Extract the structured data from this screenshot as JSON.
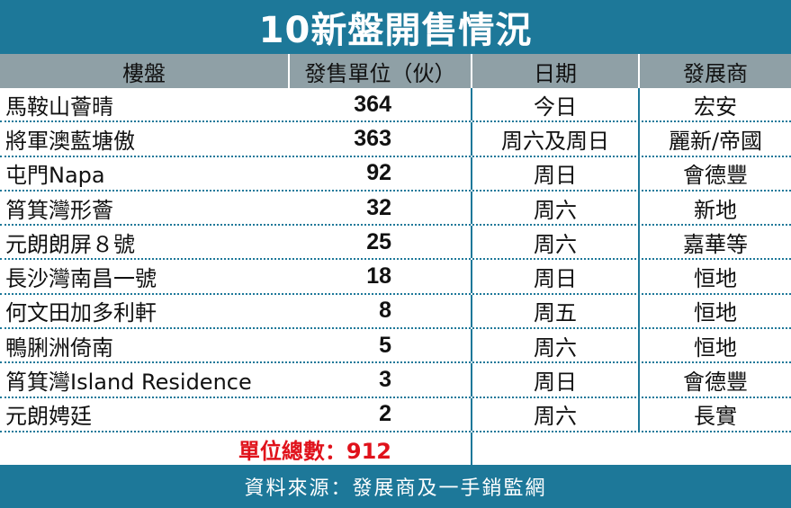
{
  "title": "10新盤開售情況",
  "headers": [
    "樓盤",
    "發售單位（伙）",
    "日期",
    "發展商"
  ],
  "rows": [
    {
      "name": "馬鞍山薈晴",
      "units": "364",
      "date": "今日",
      "developer": "宏安"
    },
    {
      "name": "將軍澳藍塘傲",
      "units": "363",
      "date": "周六及周日",
      "developer": "麗新/帝國"
    },
    {
      "name": "屯門Napa",
      "units": "92",
      "date": "周日",
      "developer": "會德豐"
    },
    {
      "name": "筲箕灣形薈",
      "units": "32",
      "date": "周六",
      "developer": "新地"
    },
    {
      "name": "元朗朗屏８號",
      "units": "25",
      "date": "周六",
      "developer": "嘉華等"
    },
    {
      "name": "長沙灣南昌一號",
      "units": "18",
      "date": "周日",
      "developer": "恒地"
    },
    {
      "name": "何文田加多利軒",
      "units": "8",
      "date": "周五",
      "developer": "恒地"
    },
    {
      "name": "鴨脷洲倚南",
      "units": "5",
      "date": "周六",
      "developer": "恒地"
    },
    {
      "name": "筲箕灣Island Residence",
      "units": "3",
      "date": "周日",
      "developer": "會德豐"
    },
    {
      "name": "元朗娉廷",
      "units": "2",
      "date": "周六",
      "developer": "長實"
    }
  ],
  "total": "單位總數：912",
  "source": "資料來源：發展商及一手銷監網",
  "colors": {
    "accent": "#1d7899",
    "header": "#8fa0a6",
    "total": "#e0121b"
  }
}
